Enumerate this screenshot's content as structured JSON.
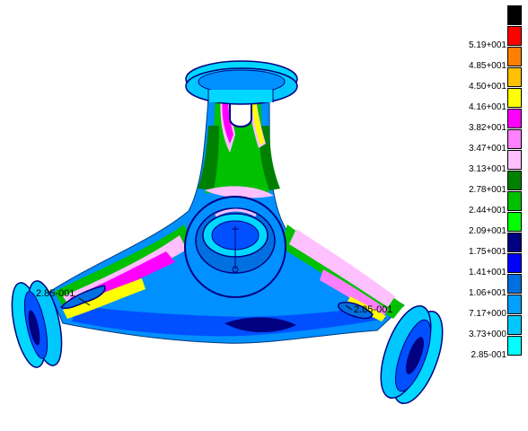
{
  "legend": {
    "items": [
      {
        "label": "",
        "color": "#000000"
      },
      {
        "label": "5.19+001",
        "color": "#ff0000"
      },
      {
        "label": "4.85+001",
        "color": "#ff8000"
      },
      {
        "label": "4.50+001",
        "color": "#ffc000"
      },
      {
        "label": "4.16+001",
        "color": "#ffff00"
      },
      {
        "label": "3.82+001",
        "color": "#ff00ff"
      },
      {
        "label": "3.47+001",
        "color": "#ff80ff"
      },
      {
        "label": "3.13+001",
        "color": "#ffc0ff"
      },
      {
        "label": "2.78+001",
        "color": "#008000"
      },
      {
        "label": "2.44+001",
        "color": "#00c000"
      },
      {
        "label": "2.09+001",
        "color": "#00ff00"
      },
      {
        "label": "1.75+001",
        "color": "#000080"
      },
      {
        "label": "1.41+001",
        "color": "#0000ff"
      },
      {
        "label": "1.06+001",
        "color": "#0070e0"
      },
      {
        "label": "7.17+000",
        "color": "#00a0ff"
      },
      {
        "label": "3.73+000",
        "color": "#00c8ff"
      },
      {
        "label": "2.85-001",
        "color": "#00ffff"
      }
    ]
  },
  "annotations": {
    "left_min": "2.85-001",
    "right_min": "2.85-001"
  },
  "model_colors": {
    "base": "#0090ff",
    "deep": "#0000ff",
    "navy": "#000080",
    "cyan": "#00d8ff",
    "green": "#00c000",
    "darkgreen": "#008000",
    "pink": "#ff80ff",
    "lightpink": "#ffc0ff",
    "magenta": "#ff00ff",
    "yellow": "#ffff00",
    "orange": "#ff8000",
    "white": "#ffffff"
  }
}
